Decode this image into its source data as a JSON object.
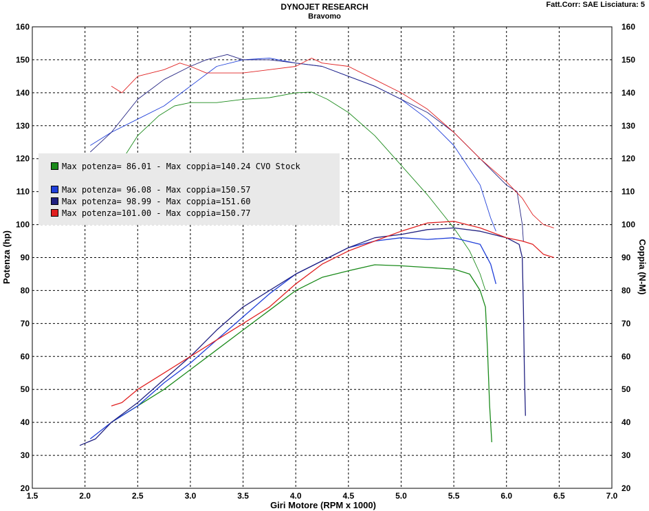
{
  "header": {
    "title": "DYNOJET RESEARCH",
    "subtitle": "Bravomo",
    "correction": "Fatt.Corr: SAE  Lisciatura: 5"
  },
  "chart_data": {
    "type": "line",
    "xlabel": "Giri Motore (RPM x 1000)",
    "ylabel_left": "Potenza (hp)",
    "ylabel_right": "Coppia (N-M)",
    "xlim": [
      1.5,
      7.0
    ],
    "ylim": [
      20,
      160
    ],
    "x_ticks": [
      "1.5",
      "2.0",
      "2.5",
      "3.0",
      "3.5",
      "4.0",
      "4.5",
      "5.0",
      "5.5",
      "6.0",
      "6.5",
      "7.0"
    ],
    "y_ticks": [
      "20",
      "30",
      "40",
      "50",
      "60",
      "70",
      "80",
      "90",
      "100",
      "110",
      "120",
      "130",
      "140",
      "150",
      "160"
    ],
    "grid": true,
    "legend": [
      {
        "label": "Max potenza= 86.01 - Max coppia=140.24 CVO Stock",
        "color": "#1a8a1a"
      },
      {
        "label": "Max potenza= 96.08 - Max coppia=150.57",
        "color": "#1f3fd9"
      },
      {
        "label": "Max potenza= 98.99 - Max coppia=151.60",
        "color": "#202080"
      },
      {
        "label": "Max potenza=101.00 - Max coppia=150.77",
        "color": "#e02020"
      }
    ],
    "series": [
      {
        "kind": "power",
        "color": "#1a8a1a",
        "x": [
          2.25,
          2.5,
          2.75,
          3.0,
          3.25,
          3.5,
          3.75,
          4.0,
          4.25,
          4.5,
          4.75,
          5.0,
          5.25,
          5.5,
          5.65,
          5.75,
          5.8,
          5.82,
          5.84,
          5.86
        ],
        "y": [
          40,
          45,
          50,
          56,
          62,
          68,
          74,
          80,
          84,
          86,
          87.8,
          87.5,
          87,
          86.5,
          85,
          80,
          75,
          62,
          45,
          34
        ]
      },
      {
        "kind": "torque",
        "color": "#1a8a1a",
        "x": [
          2.3,
          2.5,
          2.7,
          2.85,
          3.0,
          3.25,
          3.5,
          3.75,
          4.0,
          4.15,
          4.3,
          4.5,
          4.75,
          5.0,
          5.25,
          5.5,
          5.65,
          5.75,
          5.8
        ],
        "y": [
          117,
          127,
          133,
          136,
          137,
          137,
          138,
          138.5,
          140,
          140.2,
          138,
          134,
          127,
          118,
          109,
          99,
          92,
          85,
          80
        ]
      },
      {
        "kind": "power",
        "color": "#1f3fd9",
        "x": [
          2.05,
          2.25,
          2.5,
          2.75,
          3.0,
          3.25,
          3.5,
          3.75,
          4.0,
          4.25,
          4.5,
          4.75,
          5.0,
          5.25,
          5.5,
          5.75,
          5.85,
          5.9
        ],
        "y": [
          35,
          40,
          45,
          52,
          58,
          65,
          72,
          79,
          85,
          89,
          93,
          95,
          96,
          95.5,
          96,
          94,
          88,
          82
        ]
      },
      {
        "kind": "torque",
        "color": "#1f3fd9",
        "x": [
          2.05,
          2.25,
          2.5,
          2.75,
          3.0,
          3.25,
          3.5,
          3.75,
          4.0,
          4.25,
          4.5,
          4.75,
          5.0,
          5.25,
          5.5,
          5.75,
          5.85,
          5.9
        ],
        "y": [
          124,
          128,
          132,
          136,
          142,
          148,
          150,
          150.5,
          149,
          148,
          145,
          142,
          138,
          132,
          124,
          112,
          102,
          98
        ]
      },
      {
        "kind": "power",
        "color": "#202080",
        "x": [
          1.95,
          2.1,
          2.25,
          2.5,
          2.75,
          3.0,
          3.25,
          3.5,
          3.75,
          4.0,
          4.25,
          4.5,
          4.75,
          5.0,
          5.25,
          5.5,
          5.75,
          6.0,
          6.12,
          6.15,
          6.16,
          6.17,
          6.18
        ],
        "y": [
          33,
          35,
          40,
          46,
          53,
          60,
          68,
          75,
          80,
          85,
          89,
          93,
          96,
          97,
          98.5,
          99,
          98,
          96,
          94,
          90,
          75,
          55,
          42
        ]
      },
      {
        "kind": "torque",
        "color": "#202080",
        "x": [
          2.05,
          2.25,
          2.5,
          2.75,
          3.0,
          3.15,
          3.35,
          3.5,
          3.75,
          4.0,
          4.25,
          4.5,
          4.75,
          5.0,
          5.25,
          5.5,
          5.75,
          6.0,
          6.1,
          6.15,
          6.16
        ],
        "y": [
          122,
          128,
          138,
          144,
          148,
          150,
          151.6,
          150,
          150,
          149,
          148,
          145,
          142,
          138,
          134,
          128,
          120,
          112,
          110,
          100,
          95
        ]
      },
      {
        "kind": "power",
        "color": "#e02020",
        "x": [
          2.25,
          2.35,
          2.5,
          2.75,
          3.0,
          3.25,
          3.5,
          3.75,
          4.0,
          4.25,
          4.5,
          4.75,
          5.0,
          5.25,
          5.5,
          5.75,
          6.0,
          6.15,
          6.25,
          6.35,
          6.45
        ],
        "y": [
          45,
          46,
          50,
          55,
          60,
          65,
          70,
          75,
          82,
          88,
          92,
          95,
          98,
          100.5,
          101,
          99,
          96,
          95,
          94,
          91,
          90
        ]
      },
      {
        "kind": "torque",
        "color": "#e02020",
        "x": [
          2.25,
          2.35,
          2.5,
          2.75,
          2.9,
          3.0,
          3.15,
          3.25,
          3.5,
          3.75,
          4.0,
          4.15,
          4.25,
          4.5,
          4.75,
          5.0,
          5.25,
          5.5,
          5.75,
          6.0,
          6.15,
          6.25,
          6.35,
          6.45
        ],
        "y": [
          142,
          140,
          145,
          147,
          149,
          148,
          146,
          146,
          146,
          147,
          148,
          150.5,
          149,
          148,
          144,
          140,
          135,
          128,
          120,
          113,
          108,
          103,
          100,
          99
        ]
      }
    ]
  }
}
